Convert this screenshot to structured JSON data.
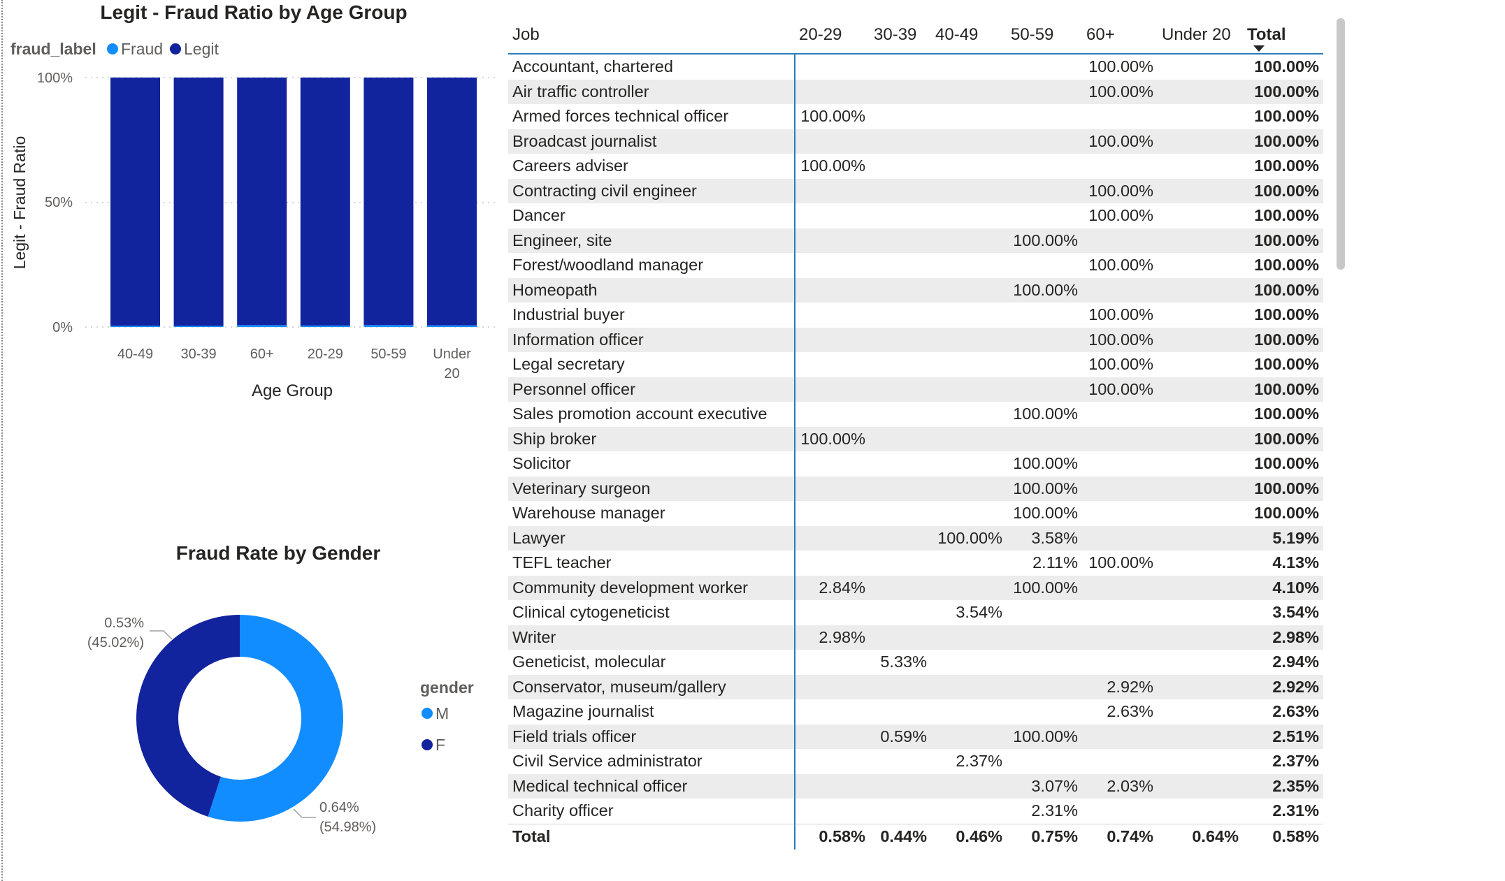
{
  "bar_chart": {
    "title": "Legit - Fraud Ratio by Age Group",
    "legend_title": "fraud_label",
    "legend": [
      {
        "name": "Fraud",
        "color": "#118dff"
      },
      {
        "name": "Legit",
        "color": "#12239e"
      }
    ],
    "y_ticks": [
      "100%",
      "50%",
      "0%"
    ],
    "ylabel": "Legit - Fraud Ratio",
    "xlabel": "Age Group",
    "category_labels": [
      [
        "40-49"
      ],
      [
        "30-39"
      ],
      [
        "60+"
      ],
      [
        "20-29"
      ],
      [
        "50-59"
      ],
      [
        "Under",
        "20"
      ]
    ]
  },
  "donut_chart": {
    "title": "Fraud Rate by Gender",
    "legend_title": "gender",
    "legend": [
      {
        "name": "M",
        "color": "#118dff"
      },
      {
        "name": "F",
        "color": "#12239e"
      }
    ],
    "labels": {
      "f_value": "0.53%",
      "f_share": "(45.02%)",
      "m_value": "0.64%",
      "m_share": "(54.98%)"
    }
  },
  "matrix": {
    "headers": [
      "Job",
      "20-29",
      "30-39",
      "40-49",
      "50-59",
      "60+",
      "Under 20",
      "Total"
    ],
    "rows": [
      [
        "Accountant, chartered",
        "",
        "",
        "",
        "",
        "100.00%",
        "",
        "100.00%"
      ],
      [
        "Air traffic controller",
        "",
        "",
        "",
        "",
        "100.00%",
        "",
        "100.00%"
      ],
      [
        "Armed forces technical officer",
        "100.00%",
        "",
        "",
        "",
        "",
        "",
        "100.00%"
      ],
      [
        "Broadcast journalist",
        "",
        "",
        "",
        "",
        "100.00%",
        "",
        "100.00%"
      ],
      [
        "Careers adviser",
        "100.00%",
        "",
        "",
        "",
        "",
        "",
        "100.00%"
      ],
      [
        "Contracting civil engineer",
        "",
        "",
        "",
        "",
        "100.00%",
        "",
        "100.00%"
      ],
      [
        "Dancer",
        "",
        "",
        "",
        "",
        "100.00%",
        "",
        "100.00%"
      ],
      [
        "Engineer, site",
        "",
        "",
        "",
        "100.00%",
        "",
        "",
        "100.00%"
      ],
      [
        "Forest/woodland manager",
        "",
        "",
        "",
        "",
        "100.00%",
        "",
        "100.00%"
      ],
      [
        "Homeopath",
        "",
        "",
        "",
        "100.00%",
        "",
        "",
        "100.00%"
      ],
      [
        "Industrial buyer",
        "",
        "",
        "",
        "",
        "100.00%",
        "",
        "100.00%"
      ],
      [
        "Information officer",
        "",
        "",
        "",
        "",
        "100.00%",
        "",
        "100.00%"
      ],
      [
        "Legal secretary",
        "",
        "",
        "",
        "",
        "100.00%",
        "",
        "100.00%"
      ],
      [
        "Personnel officer",
        "",
        "",
        "",
        "",
        "100.00%",
        "",
        "100.00%"
      ],
      [
        "Sales promotion account executive",
        "",
        "",
        "",
        "100.00%",
        "",
        "",
        "100.00%"
      ],
      [
        "Ship broker",
        "100.00%",
        "",
        "",
        "",
        "",
        "",
        "100.00%"
      ],
      [
        "Solicitor",
        "",
        "",
        "",
        "100.00%",
        "",
        "",
        "100.00%"
      ],
      [
        "Veterinary surgeon",
        "",
        "",
        "",
        "100.00%",
        "",
        "",
        "100.00%"
      ],
      [
        "Warehouse manager",
        "",
        "",
        "",
        "100.00%",
        "",
        "",
        "100.00%"
      ],
      [
        "Lawyer",
        "",
        "",
        "100.00%",
        "3.58%",
        "",
        "",
        "5.19%"
      ],
      [
        "TEFL teacher",
        "",
        "",
        "",
        "2.11%",
        "100.00%",
        "",
        "4.13%"
      ],
      [
        "Community development worker",
        "2.84%",
        "",
        "",
        "100.00%",
        "",
        "",
        "4.10%"
      ],
      [
        "Clinical cytogeneticist",
        "",
        "",
        "3.54%",
        "",
        "",
        "",
        "3.54%"
      ],
      [
        "Writer",
        "2.98%",
        "",
        "",
        "",
        "",
        "",
        "2.98%"
      ],
      [
        "Geneticist, molecular",
        "",
        "5.33%",
        "",
        "",
        "",
        "",
        "2.94%"
      ],
      [
        "Conservator, museum/gallery",
        "",
        "",
        "",
        "",
        "2.92%",
        "",
        "2.92%"
      ],
      [
        "Magazine journalist",
        "",
        "",
        "",
        "",
        "2.63%",
        "",
        "2.63%"
      ],
      [
        "Field trials officer",
        "",
        "0.59%",
        "",
        "100.00%",
        "",
        "",
        "2.51%"
      ],
      [
        "Civil Service administrator",
        "",
        "",
        "2.37%",
        "",
        "",
        "",
        "2.37%"
      ],
      [
        "Medical technical officer",
        "",
        "",
        "",
        "3.07%",
        "2.03%",
        "",
        "2.35%"
      ],
      [
        "Charity officer",
        "",
        "",
        "",
        "2.31%",
        "",
        "",
        "2.31%"
      ]
    ],
    "total_row": [
      "Total",
      "0.58%",
      "0.44%",
      "0.46%",
      "0.75%",
      "0.74%",
      "0.64%",
      "0.58%"
    ]
  },
  "chart_data": [
    {
      "type": "bar",
      "stacked": "100%",
      "title": "Legit - Fraud Ratio by Age Group",
      "xlabel": "Age Group",
      "ylabel": "Legit - Fraud Ratio",
      "categories": [
        "40-49",
        "30-39",
        "60+",
        "20-29",
        "50-59",
        "Under 20"
      ],
      "series": [
        {
          "name": "Fraud",
          "color": "#118dff",
          "values": [
            0.46,
            0.44,
            0.74,
            0.58,
            0.75,
            0.64
          ]
        },
        {
          "name": "Legit",
          "color": "#12239e",
          "values": [
            99.54,
            99.56,
            99.26,
            99.42,
            99.25,
            99.36
          ]
        }
      ],
      "ylim": [
        0,
        100
      ],
      "grid": true,
      "legend_position": "top-left"
    },
    {
      "type": "pie",
      "donut": true,
      "title": "Fraud Rate by Gender",
      "slices": [
        {
          "name": "M",
          "color": "#118dff",
          "value": 0.64,
          "share": 54.98
        },
        {
          "name": "F",
          "color": "#12239e",
          "value": 0.53,
          "share": 45.02
        }
      ],
      "legend_position": "right"
    }
  ]
}
